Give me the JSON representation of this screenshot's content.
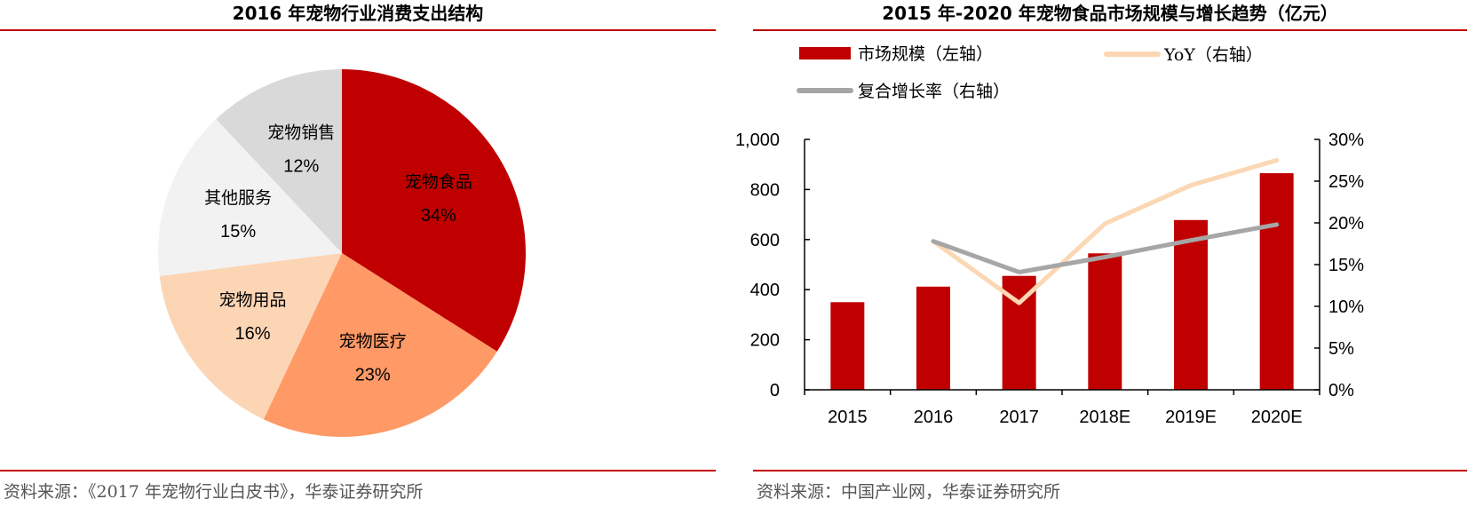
{
  "colors": {
    "red": "#c00000",
    "salmon": "#ff9966",
    "peach": "#fcd5b5",
    "lightgray": "#f2f2f2",
    "gray": "#d9d9d9",
    "yoy": "#fbd7b3",
    "cagr": "#a6a6a6",
    "rule": "#c00000"
  },
  "left": {
    "title": "2016 年宠物行业消费支出结构",
    "source": "资料来源：《2017 年宠物行业白皮书》，华泰证券研究所"
  },
  "right": {
    "title": "2015 年-2020 年宠物食品市场规模与增长趋势（亿元）",
    "source": "资料来源：中国产业网，华泰证券研究所"
  },
  "chart_data": [
    {
      "type": "pie",
      "title": "2016 年宠物行业消费支出结构",
      "slices": [
        {
          "label": "宠物食品",
          "value": 34,
          "pct_label": "34%",
          "color": "#c00000"
        },
        {
          "label": "宠物医疗",
          "value": 23,
          "pct_label": "23%",
          "color": "#ff9966"
        },
        {
          "label": "宠物用品",
          "value": 16,
          "pct_label": "16%",
          "color": "#fcd5b5"
        },
        {
          "label": "其他服务",
          "value": 15,
          "pct_label": "15%",
          "color": "#f2f2f2"
        },
        {
          "label": "宠物销售",
          "value": 12,
          "pct_label": "12%",
          "color": "#d9d9d9"
        }
      ]
    },
    {
      "type": "bar",
      "title": "2015 年-2020 年宠物食品市场规模与增长趋势（亿元）",
      "categories": [
        "2015",
        "2016",
        "2017",
        "2018E",
        "2019E",
        "2020E"
      ],
      "ylim": [
        0,
        1000
      ],
      "yticks": [
        "0",
        "200",
        "400",
        "600",
        "800",
        "1,000"
      ],
      "ytick_values": [
        0,
        200,
        400,
        600,
        800,
        1000
      ],
      "y2lim": [
        0,
        30
      ],
      "y2ticks": [
        "0%",
        "5%",
        "10%",
        "15%",
        "20%",
        "25%",
        "30%"
      ],
      "y2tick_values": [
        0,
        5,
        10,
        15,
        20,
        25,
        30
      ],
      "legend_placement": "top",
      "series": [
        {
          "name": "市场规模（左轴）",
          "kind": "bar",
          "axis": "left",
          "color": "#c00000",
          "values": [
            350,
            412,
            455,
            545,
            678,
            865
          ]
        },
        {
          "name": "YoY（右轴）",
          "kind": "line",
          "axis": "right",
          "color": "#fbd7b3",
          "values": [
            null,
            17.8,
            10.4,
            19.9,
            24.5,
            27.5
          ]
        },
        {
          "name": "复合增长率（右轴）",
          "kind": "line",
          "axis": "right",
          "color": "#a6a6a6",
          "values": [
            null,
            17.8,
            14.1,
            15.9,
            17.9,
            19.8
          ]
        }
      ]
    }
  ]
}
